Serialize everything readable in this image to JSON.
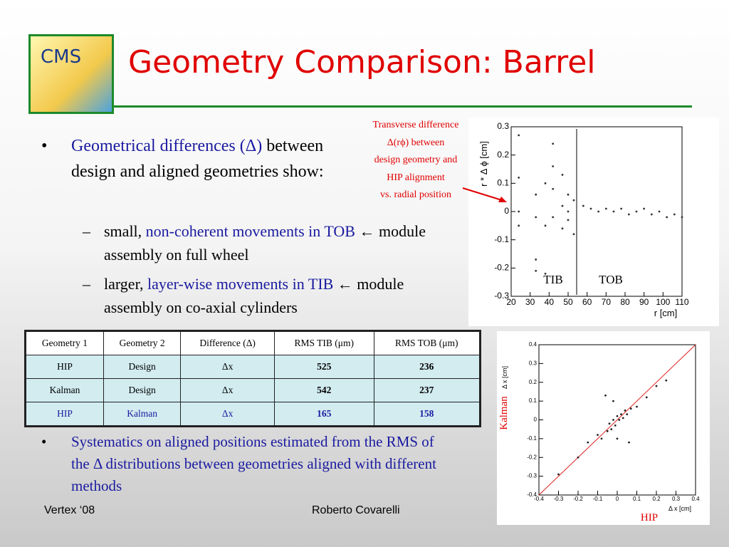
{
  "header": {
    "title": "Geometry Comparison: Barrel",
    "logo": "CMS"
  },
  "bullets": {
    "first": [
      "Geometrical differences (Δ)",
      " between design and aligned geometries show:"
    ],
    "sub": [
      [
        "small, ",
        "non-coherent movements in TOB",
        " ← module assembly on full wheel"
      ],
      [
        "larger, ",
        "layer-wise movements in TIB",
        " ← module assembly on co-axial cylinders"
      ]
    ],
    "last": "Systematics on aligned positions estimated from the RMS of the Δ distributions between geometries aligned with different methods"
  },
  "annotation": [
    "Transverse difference",
    "Δ(rϕ) between",
    "design geometry and",
    "HIP alignment",
    "vs. radial position"
  ],
  "table": {
    "header": [
      "Geometry 1",
      "Geometry 2",
      "Difference (Δ)",
      "RMS TIB (μm)",
      "RMS TOB (μm)"
    ],
    "rows": [
      [
        "HIP",
        "Design",
        "Δx",
        "525",
        "236"
      ],
      [
        "Kalman",
        "Design",
        "Δx",
        "542",
        "237"
      ],
      [
        "HIP",
        "Kalman",
        "Δx",
        "165",
        "158"
      ]
    ]
  },
  "footer": {
    "left": "Vertex ‘08",
    "center": "Roberto Covarelli"
  },
  "chart_data": [
    {
      "type": "scatter",
      "y_label": "r * Δ ϕ [cm]",
      "x_label": "r [cm]",
      "xlim": [
        20,
        110
      ],
      "xticks": [
        20,
        30,
        40,
        50,
        60,
        70,
        80,
        90,
        100,
        110
      ],
      "ylim": [
        -0.3,
        0.3
      ],
      "yticks": [
        -0.3,
        -0.2,
        -0.1,
        0,
        0.1,
        0.2,
        0.3
      ],
      "annotations": [
        "TIB",
        "TOB"
      ],
      "color": "#333333",
      "x": [
        24,
        24,
        24,
        24,
        33,
        33,
        33,
        33,
        38,
        38,
        38,
        42,
        42,
        42,
        42,
        47,
        47,
        47,
        50,
        50,
        50,
        53,
        53,
        58,
        62,
        66,
        70,
        74,
        78,
        82,
        86,
        90,
        94,
        98,
        102,
        106,
        110
      ],
      "values": [
        0.27,
        0.12,
        0.0,
        -0.05,
        0.06,
        -0.02,
        -0.17,
        -0.21,
        0.1,
        -0.05,
        -0.22,
        0.24,
        0.16,
        0.08,
        -0.02,
        0.13,
        0.02,
        -0.06,
        0.06,
        0.0,
        -0.03,
        0.04,
        -0.08,
        0.02,
        0.01,
        0.0,
        0.01,
        0.0,
        0.01,
        -0.01,
        0.0,
        0.01,
        -0.01,
        0.0,
        -0.02,
        -0.01,
        -0.02
      ]
    },
    {
      "type": "scatter",
      "y_label": "Δ x [cm]",
      "x_label": "Δ x [cm]",
      "xlim": [
        -0.4,
        0.4
      ],
      "xticks": [
        -0.4,
        -0.3,
        -0.2,
        -0.1,
        0,
        0.1,
        0.2,
        0.3,
        0.4
      ],
      "ylim": [
        -0.4,
        0.4
      ],
      "yticks": [
        -0.4,
        -0.3,
        -0.2,
        -0.1,
        0,
        0.1,
        0.2,
        0.3,
        0.4
      ],
      "annotations": [
        "Kalman",
        "HIP"
      ],
      "color": "#222222",
      "diagonal": true,
      "diagonal_color": "#e02020",
      "x": [
        -0.3,
        -0.2,
        -0.15,
        -0.1,
        -0.08,
        -0.05,
        -0.04,
        -0.03,
        -0.02,
        -0.01,
        0,
        0.01,
        0.02,
        0.03,
        0.04,
        0.05,
        0.07,
        0.1,
        0.15,
        0.2,
        0.25,
        -0.06,
        0.06,
        0.0,
        -0.02
      ],
      "values": [
        -0.29,
        -0.2,
        -0.12,
        -0.08,
        -0.1,
        -0.06,
        -0.02,
        -0.05,
        0.0,
        -0.03,
        0.02,
        0.0,
        0.03,
        0.01,
        0.05,
        0.03,
        0.06,
        0.07,
        0.12,
        0.18,
        0.21,
        0.13,
        -0.12,
        -0.1,
        0.1
      ]
    }
  ]
}
